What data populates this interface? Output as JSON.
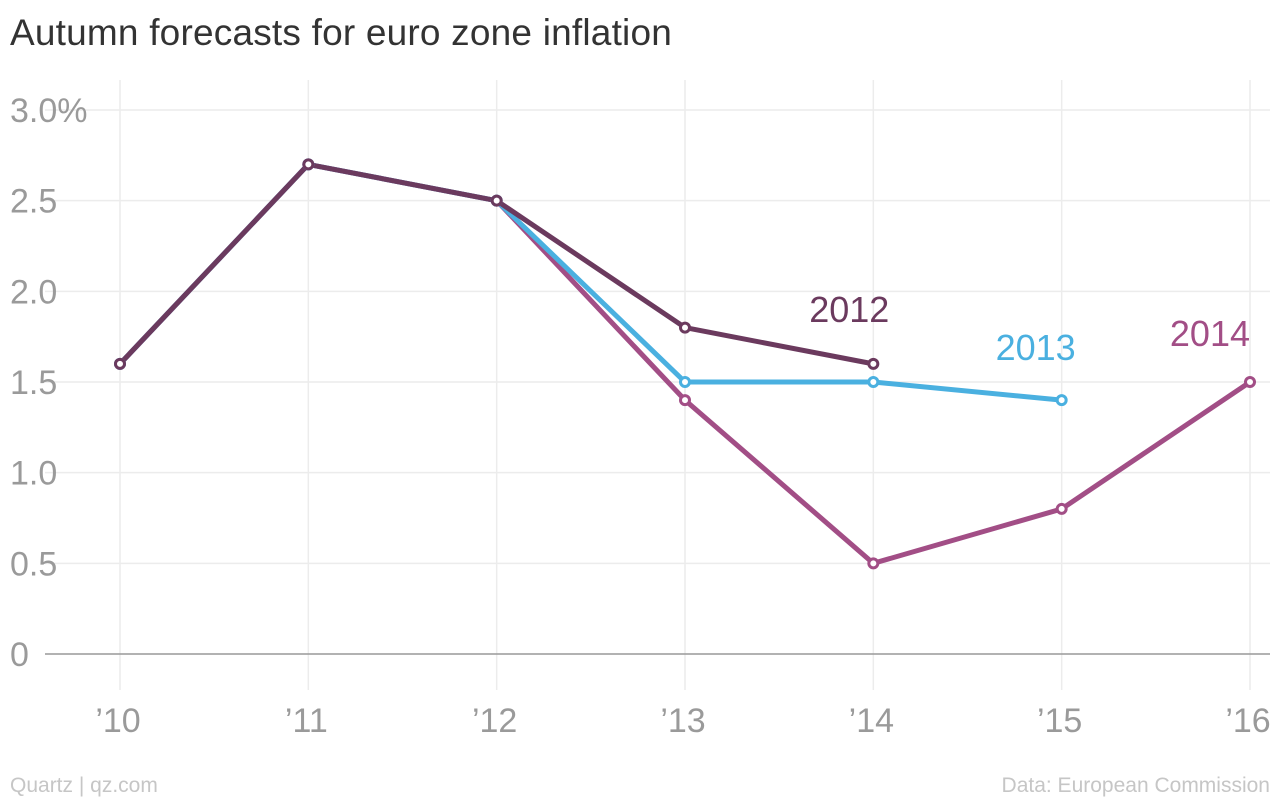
{
  "title": "Autumn forecasts for euro zone inflation",
  "footer": {
    "source_left": "Quartz | qz.com",
    "source_right": "Data: European Commission"
  },
  "chart_data": {
    "type": "line",
    "x": [
      "2010",
      "2011",
      "2012",
      "2013",
      "2014",
      "2015",
      "2016"
    ],
    "x_tick_labels": [
      "’10",
      "’11",
      "’12",
      "’13",
      "’14",
      "’15",
      "’16"
    ],
    "y_tick_values": [
      0,
      0.5,
      1.0,
      1.5,
      2.0,
      2.5,
      3.0
    ],
    "y_tick_labels": [
      "0",
      "0.5",
      "1.0",
      "1.5",
      "2.0",
      "2.5",
      "3.0%"
    ],
    "ylim": [
      0,
      3.0
    ],
    "grid": true,
    "series": [
      {
        "name": "2014",
        "color": "#a24e86",
        "values": [
          1.6,
          2.7,
          2.5,
          1.4,
          0.5,
          0.8,
          1.5
        ]
      },
      {
        "name": "2013",
        "color": "#4ab0e0",
        "values": [
          1.6,
          2.7,
          2.5,
          1.5,
          1.5,
          1.4,
          null
        ]
      },
      {
        "name": "2012",
        "color": "#6b3a5e",
        "values": [
          1.6,
          2.7,
          2.5,
          1.8,
          1.6,
          null,
          null
        ]
      }
    ]
  }
}
